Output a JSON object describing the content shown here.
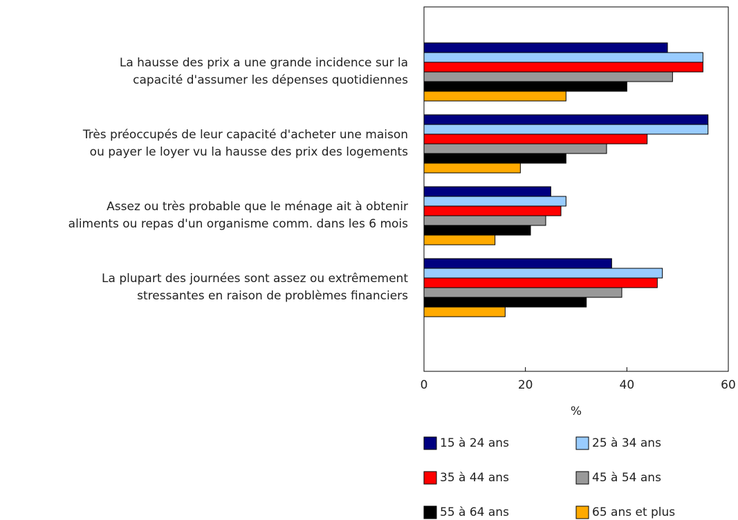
{
  "chart_data": {
    "type": "bar",
    "orientation": "horizontal",
    "categories": [
      "La hausse des prix a une grande incidence sur la\ncapacité d'assumer les dépenses quotidiennes",
      "Très préoccupés de leur capacité d'acheter une maison\nou payer le loyer vu la hausse des prix des logements",
      "Assez ou très probable que le ménage ait à obtenir\naliments ou repas d'un organisme comm. dans les 6 mois",
      "La plupart des journées sont assez ou extrêmement\nstressantes en raison de problèmes financiers"
    ],
    "series": [
      {
        "name": "15 à 24 ans",
        "color": "#000080",
        "values": [
          48,
          56,
          25,
          37
        ]
      },
      {
        "name": "25 à 34 ans",
        "color": "#99ccff",
        "values": [
          55,
          56,
          28,
          47
        ]
      },
      {
        "name": "35 à 44 ans",
        "color": "#ff0000",
        "values": [
          55,
          44,
          27,
          46
        ]
      },
      {
        "name": "45 à 54 ans",
        "color": "#999999",
        "values": [
          49,
          36,
          24,
          39
        ]
      },
      {
        "name": "55 à 64 ans",
        "color": "#000000",
        "values": [
          40,
          28,
          21,
          32
        ]
      },
      {
        "name": "65 ans et plus",
        "color": "#ffaa00",
        "values": [
          28,
          19,
          14,
          16
        ]
      }
    ],
    "x_label": "%",
    "xlim": [
      0,
      60
    ],
    "xticks": [
      0,
      20,
      40,
      60
    ]
  }
}
